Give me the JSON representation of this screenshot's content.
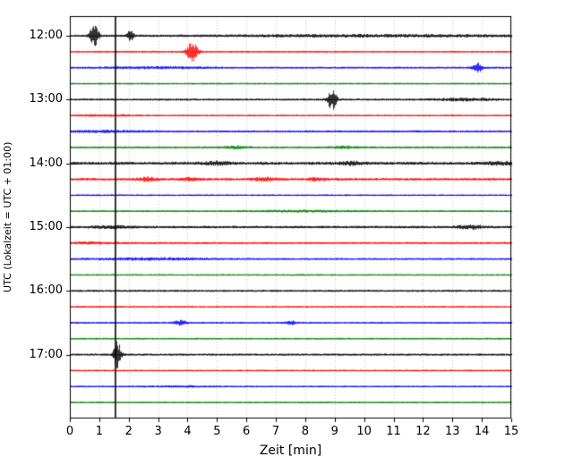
{
  "chart_data": {
    "type": "line",
    "subtype": "seismogram-dayplot",
    "title": "",
    "xlabel": "Zeit  [min]",
    "ylabel": "UTC (Lokalzeit = UTC + 01:00)",
    "x_range": [
      0,
      15
    ],
    "x_ticks": [
      "0",
      "1",
      "2",
      "3",
      "4",
      "5",
      "6",
      "7",
      "8",
      "9",
      "10",
      "11",
      "12",
      "13",
      "14",
      "15"
    ],
    "y_tick_labels": [
      "12:00",
      "13:00",
      "14:00",
      "15:00",
      "16:00",
      "17:00"
    ],
    "y_tick_trace_indices": [
      0,
      4,
      8,
      12,
      16,
      20
    ],
    "minutes_per_row": 15,
    "grid": {
      "vertical": true,
      "style": "dotted",
      "color": "#b0b0b0"
    },
    "trace_color_cycle": [
      "#000000",
      "#ff0000",
      "#0000ff",
      "#008000"
    ],
    "annotations": [
      {
        "type": "vline",
        "x_min": 1.55,
        "color": "#000000"
      }
    ],
    "traces": [
      {
        "time": "12:00",
        "color": "#000000",
        "base_amp": 1.2,
        "events": [
          {
            "c": 0.82,
            "s": 0.1,
            "a": 13
          },
          {
            "c": 2.05,
            "s": 0.08,
            "a": 6
          },
          {
            "c": 10.5,
            "s": 4.0,
            "a": 0.9
          }
        ]
      },
      {
        "time": "12:15",
        "color": "#ff0000",
        "base_amp": 1.0,
        "events": [
          {
            "c": 4.15,
            "s": 0.13,
            "a": 11
          }
        ]
      },
      {
        "time": "12:30",
        "color": "#0000ff",
        "base_amp": 1.1,
        "events": [
          {
            "c": 13.85,
            "s": 0.12,
            "a": 5
          },
          {
            "c": 3.0,
            "s": 1.2,
            "a": 0.8
          }
        ]
      },
      {
        "time": "12:45",
        "color": "#008000",
        "base_amp": 1.0,
        "events": []
      },
      {
        "time": "13:00",
        "color": "#000000",
        "base_amp": 1.2,
        "events": [
          {
            "c": 8.9,
            "s": 0.1,
            "a": 12
          },
          {
            "c": 13.4,
            "s": 0.7,
            "a": 1.2
          }
        ]
      },
      {
        "time": "13:15",
        "color": "#ff0000",
        "base_amp": 1.0,
        "events": [
          {
            "c": 1.2,
            "s": 0.8,
            "a": 0.6
          }
        ]
      },
      {
        "time": "13:30",
        "color": "#0000ff",
        "base_amp": 1.2,
        "events": [
          {
            "c": 1.2,
            "s": 0.9,
            "a": 0.8
          }
        ]
      },
      {
        "time": "13:45",
        "color": "#008000",
        "base_amp": 1.2,
        "events": [
          {
            "c": 5.6,
            "s": 0.25,
            "a": 1.2
          },
          {
            "c": 9.3,
            "s": 0.3,
            "a": 1.0
          }
        ]
      },
      {
        "time": "14:00",
        "color": "#000000",
        "base_amp": 1.7,
        "events": [
          {
            "c": 5.0,
            "s": 0.3,
            "a": 1.5
          },
          {
            "c": 9.6,
            "s": 0.3,
            "a": 1.5
          },
          {
            "c": 14.6,
            "s": 0.3,
            "a": 1.5
          }
        ]
      },
      {
        "time": "14:15",
        "color": "#ff0000",
        "base_amp": 1.5,
        "events": [
          {
            "c": 2.6,
            "s": 0.25,
            "a": 1.8
          },
          {
            "c": 4.1,
            "s": 0.2,
            "a": 1.5
          },
          {
            "c": 6.6,
            "s": 0.25,
            "a": 1.5
          },
          {
            "c": 8.4,
            "s": 0.2,
            "a": 1.2
          }
        ]
      },
      {
        "time": "14:30",
        "color": "#0000ff",
        "base_amp": 1.0,
        "events": []
      },
      {
        "time": "14:45",
        "color": "#008000",
        "base_amp": 1.1,
        "events": [
          {
            "c": 7.8,
            "s": 1.2,
            "a": 0.7
          }
        ]
      },
      {
        "time": "15:00",
        "color": "#000000",
        "base_amp": 1.4,
        "events": [
          {
            "c": 13.6,
            "s": 0.3,
            "a": 2.0
          },
          {
            "c": 1.4,
            "s": 0.4,
            "a": 1.2
          }
        ]
      },
      {
        "time": "15:15",
        "color": "#ff0000",
        "base_amp": 1.2,
        "events": [
          {
            "c": 0.8,
            "s": 0.6,
            "a": 0.8
          }
        ]
      },
      {
        "time": "15:30",
        "color": "#0000ff",
        "base_amp": 1.1,
        "events": [
          {
            "c": 2.8,
            "s": 1.3,
            "a": 1.0
          }
        ]
      },
      {
        "time": "15:45",
        "color": "#008000",
        "base_amp": 1.0,
        "events": []
      },
      {
        "time": "16:00",
        "color": "#000000",
        "base_amp": 1.2,
        "events": []
      },
      {
        "time": "16:15",
        "color": "#ff0000",
        "base_amp": 1.0,
        "events": []
      },
      {
        "time": "16:30",
        "color": "#0000ff",
        "base_amp": 1.0,
        "events": [
          {
            "c": 3.75,
            "s": 0.15,
            "a": 2.5
          },
          {
            "c": 7.5,
            "s": 0.12,
            "a": 2.2
          }
        ]
      },
      {
        "time": "16:45",
        "color": "#008000",
        "base_amp": 1.0,
        "events": []
      },
      {
        "time": "17:00",
        "color": "#000000",
        "base_amp": 1.2,
        "events": [
          {
            "c": 1.6,
            "s": 0.09,
            "a": 15
          }
        ]
      },
      {
        "time": "17:15",
        "color": "#ff0000",
        "base_amp": 1.0,
        "events": []
      },
      {
        "time": "17:30",
        "color": "#0000ff",
        "base_amp": 1.0,
        "events": [
          {
            "c": 3.8,
            "s": 0.8,
            "a": 0.5
          }
        ]
      },
      {
        "time": "17:45",
        "color": "#008000",
        "base_amp": 1.0,
        "events": []
      }
    ]
  }
}
